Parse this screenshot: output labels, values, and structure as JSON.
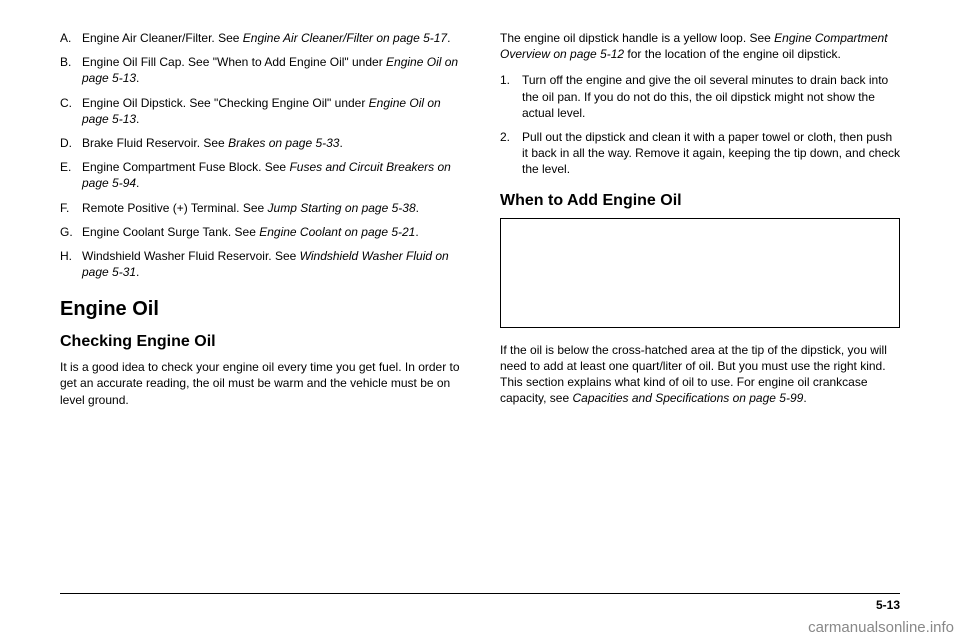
{
  "left": {
    "items": [
      {
        "marker": "A.",
        "pre": "Engine Air Cleaner/Filter. See ",
        "ital": "Engine Air Cleaner/Filter on page 5-17",
        "post": "."
      },
      {
        "marker": "B.",
        "pre": "Engine Oil Fill Cap. See \"When to Add Engine Oil\" under ",
        "ital": "Engine Oil on page 5-13",
        "post": "."
      },
      {
        "marker": "C.",
        "pre": "Engine Oil Dipstick. See \"Checking Engine Oil\" under ",
        "ital": "Engine Oil on page 5-13",
        "post": "."
      },
      {
        "marker": "D.",
        "pre": "Brake Fluid Reservoir. See ",
        "ital": "Brakes on page 5-33",
        "post": "."
      },
      {
        "marker": "E.",
        "pre": "Engine Compartment Fuse Block. See ",
        "ital": "Fuses and Circuit Breakers on page 5-94",
        "post": "."
      },
      {
        "marker": "F.",
        "pre": "Remote Positive (+) Terminal. See ",
        "ital": "Jump Starting on page 5-38",
        "post": "."
      },
      {
        "marker": "G.",
        "pre": "Engine Coolant Surge Tank. See ",
        "ital": "Engine Coolant on page 5-21",
        "post": "."
      },
      {
        "marker": "H.",
        "pre": "Windshield Washer Fluid Reservoir. See ",
        "ital": "Windshield Washer Fluid on page 5-31",
        "post": "."
      }
    ],
    "h2": "Engine Oil",
    "h3": "Checking Engine Oil",
    "p": "It is a good idea to check your engine oil every time you get fuel. In order to get an accurate reading, the oil must be warm and the vehicle must be on level ground."
  },
  "right": {
    "p1_pre": "The engine oil dipstick handle is a yellow loop. See ",
    "p1_ital": "Engine Compartment Overview on page 5-12",
    "p1_post": " for the location of the engine oil dipstick.",
    "steps": [
      {
        "marker": "1.",
        "text": "Turn off the engine and give the oil several minutes to drain back into the oil pan. If you do not do this, the oil dipstick might not show the actual level."
      },
      {
        "marker": "2.",
        "text": "Pull out the dipstick and clean it with a paper towel or cloth, then push it back in all the way. Remove it again, keeping the tip down, and check the level."
      }
    ],
    "h3": "When to Add Engine Oil",
    "p2_pre": "If the oil is below the cross-hatched area at the tip of the dipstick, you will need to add at least one quart/liter of oil. But you must use the right kind. This section explains what kind of oil to use. For engine oil crankcase capacity, see ",
    "p2_ital": "Capacities and Specifications on page 5-99",
    "p2_post": "."
  },
  "footer": "5-13",
  "watermark": "carmanualsonline.info"
}
